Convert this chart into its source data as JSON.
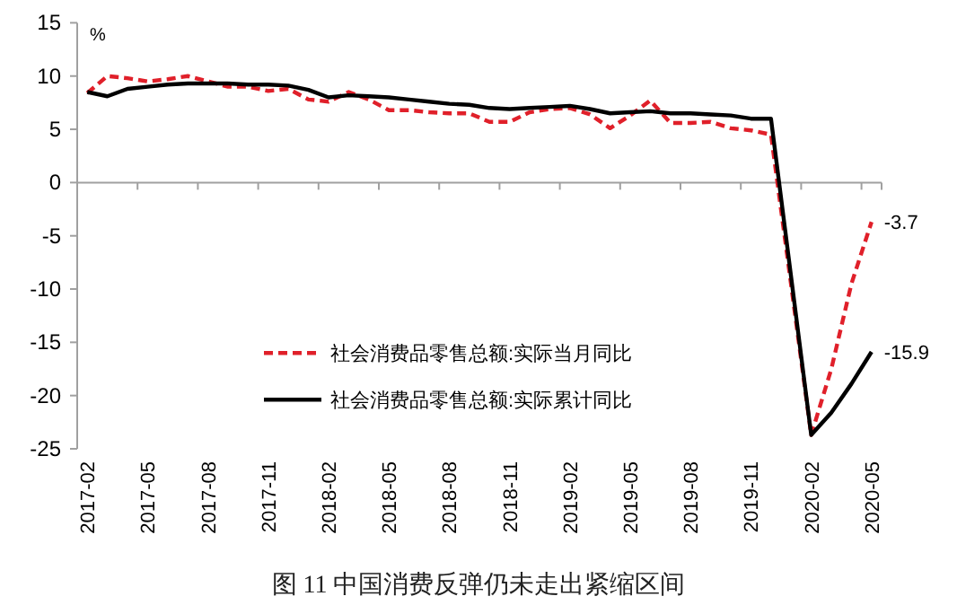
{
  "chart_data": {
    "type": "line",
    "categories": [
      "2017-02",
      null,
      null,
      "2017-05",
      null,
      null,
      "2017-08",
      null,
      null,
      "2017-11",
      null,
      null,
      "2018-02",
      null,
      null,
      "2018-05",
      null,
      null,
      "2018-08",
      null,
      null,
      "2018-11",
      null,
      null,
      "2019-02",
      null,
      null,
      "2019-05",
      null,
      null,
      "2019-08",
      null,
      null,
      "2019-11",
      null,
      null,
      "2020-02",
      null,
      null,
      "2020-05"
    ],
    "series": [
      {
        "name": "社会消费品零售总额:实际当月同比",
        "color": "#e0202a",
        "line_style": "dashed",
        "values": [
          8.4,
          10.0,
          9.8,
          9.5,
          9.7,
          10.0,
          9.5,
          9.0,
          9.0,
          8.6,
          8.8,
          7.8,
          7.6,
          8.5,
          7.8,
          6.8,
          6.8,
          6.6,
          6.5,
          6.5,
          5.7,
          5.7,
          6.6,
          6.9,
          7.0,
          6.4,
          5.1,
          6.3,
          7.7,
          5.6,
          5.6,
          5.7,
          5.1,
          4.9,
          4.5,
          null,
          -23.7,
          -17.5,
          -9.5,
          -3.7
        ],
        "value_labels": [
          null,
          null,
          null,
          null,
          null,
          null,
          null,
          null,
          null,
          null,
          null,
          null,
          null,
          null,
          null,
          null,
          null,
          null,
          null,
          null,
          null,
          null,
          null,
          null,
          null,
          null,
          null,
          null,
          null,
          null,
          null,
          null,
          null,
          null,
          null,
          null,
          null,
          null,
          null,
          "-3.7"
        ]
      },
      {
        "name": "社会消费品零售总额:实际累计同比",
        "color": "#000000",
        "line_style": "solid",
        "values": [
          8.5,
          8.1,
          8.8,
          9.0,
          9.2,
          9.3,
          9.3,
          9.3,
          9.2,
          9.2,
          9.1,
          8.7,
          8.0,
          8.2,
          8.1,
          8.0,
          7.8,
          7.6,
          7.4,
          7.3,
          7.0,
          6.9,
          7.0,
          7.1,
          7.2,
          6.9,
          6.5,
          6.6,
          6.7,
          6.5,
          6.5,
          6.4,
          6.3,
          6.0,
          6.0,
          null,
          -23.7,
          -21.6,
          -18.9,
          -15.9
        ],
        "value_labels": [
          null,
          null,
          null,
          null,
          null,
          null,
          null,
          null,
          null,
          null,
          null,
          null,
          null,
          null,
          null,
          null,
          null,
          null,
          null,
          null,
          null,
          null,
          null,
          null,
          null,
          null,
          null,
          null,
          null,
          null,
          null,
          null,
          null,
          null,
          null,
          null,
          null,
          null,
          null,
          "-15.9"
        ]
      }
    ],
    "ylabel": "%",
    "ylim": [
      -25,
      15
    ],
    "yticks": [
      -25,
      -20,
      -15,
      -10,
      -5,
      0,
      5,
      10,
      15
    ],
    "legend": "center",
    "annotations": [
      "图 11  中国消费反弹仍未走出紧缩区间"
    ]
  }
}
